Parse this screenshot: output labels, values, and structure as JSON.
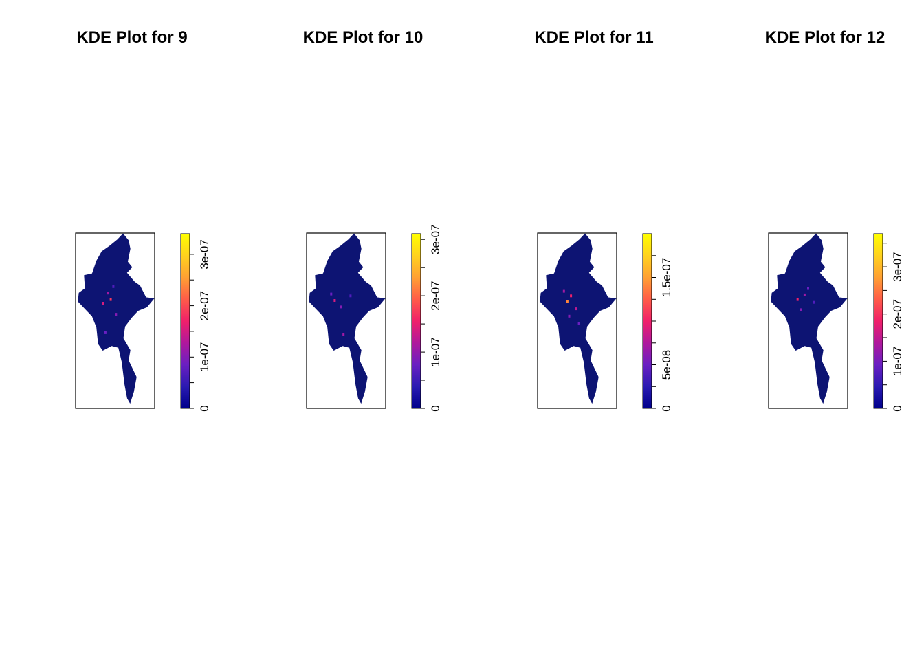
{
  "chart_data": [
    {
      "type": "heatmap",
      "title": "KDE Plot for  9",
      "colorbar": {
        "range": [
          0,
          3.4e-07
        ],
        "ticks": [
          0,
          5e-08,
          1e-07,
          1.5e-07,
          2e-07,
          2.5e-07,
          3e-07
        ],
        "tick_labels": [
          "0",
          "",
          "1e-07",
          "",
          "2e-07",
          "",
          "3e-07"
        ],
        "palette": [
          "#00008B",
          "#2A1AB2",
          "#6A1FC2",
          "#B0189C",
          "#F0206A",
          "#FF5C48",
          "#FFA033",
          "#FFD21E",
          "#FFFF00"
        ]
      },
      "map_background": "#0D1473",
      "hotspots": [
        {
          "lon": 96.2,
          "lat": 21.4,
          "level": 0.55
        },
        {
          "lon": 95.9,
          "lat": 22.1,
          "level": 0.35
        },
        {
          "lon": 95.3,
          "lat": 21.0,
          "level": 0.45
        },
        {
          "lon": 96.8,
          "lat": 19.8,
          "level": 0.3
        },
        {
          "lon": 95.6,
          "lat": 17.8,
          "level": 0.25
        },
        {
          "lon": 96.5,
          "lat": 22.8,
          "level": 0.2
        }
      ],
      "frame": {
        "lon": [
          92.2,
          101.2
        ],
        "lat": [
          9.6,
          28.6
        ]
      }
    },
    {
      "type": "heatmap",
      "title": "KDE Plot for  10",
      "colorbar": {
        "range": [
          0,
          3.1e-07
        ],
        "ticks": [
          0,
          5e-08,
          1e-07,
          1.5e-07,
          2e-07,
          2.5e-07,
          3e-07
        ],
        "tick_labels": [
          "0",
          "",
          "1e-07",
          "",
          "2e-07",
          "",
          "3e-07"
        ],
        "palette": [
          "#00008B",
          "#2A1AB2",
          "#6A1FC2",
          "#B0189C",
          "#F0206A",
          "#FF5C48",
          "#FFA033",
          "#FFD21E",
          "#FFFF00"
        ]
      },
      "map_background": "#0D1473",
      "hotspots": [
        {
          "lon": 95.4,
          "lat": 21.3,
          "level": 0.45
        },
        {
          "lon": 96.1,
          "lat": 20.6,
          "level": 0.3
        },
        {
          "lon": 95.0,
          "lat": 22.0,
          "level": 0.25
        },
        {
          "lon": 96.4,
          "lat": 17.6,
          "level": 0.35
        },
        {
          "lon": 97.2,
          "lat": 21.8,
          "level": 0.2
        }
      ],
      "frame": {
        "lon": [
          92.2,
          101.2
        ],
        "lat": [
          9.6,
          28.6
        ]
      }
    },
    {
      "type": "heatmap",
      "title": "KDE Plot for  11",
      "colorbar": {
        "range": [
          0,
          2e-07
        ],
        "ticks": [
          0,
          2.5e-08,
          5e-08,
          7.5e-08,
          1e-07,
          1.25e-07,
          1.5e-07,
          1.75e-07
        ],
        "tick_labels": [
          "0",
          "",
          "5e-08",
          "",
          "",
          "",
          "1.5e-07",
          ""
        ],
        "palette": [
          "#00008B",
          "#2A1AB2",
          "#6A1FC2",
          "#B0189C",
          "#F0206A",
          "#FF5C48",
          "#FFA033",
          "#FFD21E",
          "#FFFF00"
        ]
      },
      "map_background": "#0D1473",
      "hotspots": [
        {
          "lon": 95.6,
          "lat": 21.2,
          "level": 0.7
        },
        {
          "lon": 96.0,
          "lat": 21.8,
          "level": 0.5
        },
        {
          "lon": 95.2,
          "lat": 22.3,
          "level": 0.35
        },
        {
          "lon": 96.6,
          "lat": 20.4,
          "level": 0.4
        },
        {
          "lon": 95.8,
          "lat": 19.6,
          "level": 0.3
        },
        {
          "lon": 96.9,
          "lat": 18.8,
          "level": 0.25
        }
      ],
      "frame": {
        "lon": [
          92.2,
          101.2
        ],
        "lat": [
          9.6,
          28.6
        ]
      }
    },
    {
      "type": "heatmap",
      "title": "KDE Plot for  12",
      "colorbar": {
        "range": [
          0,
          3.7e-07
        ],
        "ticks": [
          0,
          5e-08,
          1e-07,
          1.5e-07,
          2e-07,
          2.5e-07,
          3e-07,
          3.5e-07
        ],
        "tick_labels": [
          "0",
          "",
          "1e-07",
          "",
          "2e-07",
          "",
          "3e-07",
          ""
        ],
        "palette": [
          "#00008B",
          "#2A1AB2",
          "#6A1FC2",
          "#B0189C",
          "#F0206A",
          "#FF5C48",
          "#FFA033",
          "#FFD21E",
          "#FFFF00"
        ]
      },
      "map_background": "#0D1473",
      "hotspots": [
        {
          "lon": 95.5,
          "lat": 21.4,
          "level": 0.5
        },
        {
          "lon": 96.3,
          "lat": 21.9,
          "level": 0.35
        },
        {
          "lon": 95.9,
          "lat": 20.3,
          "level": 0.3
        },
        {
          "lon": 96.7,
          "lat": 22.6,
          "level": 0.25
        },
        {
          "lon": 97.4,
          "lat": 21.1,
          "level": 0.2
        }
      ],
      "frame": {
        "lon": [
          92.2,
          101.2
        ],
        "lat": [
          9.6,
          28.6
        ]
      }
    }
  ]
}
